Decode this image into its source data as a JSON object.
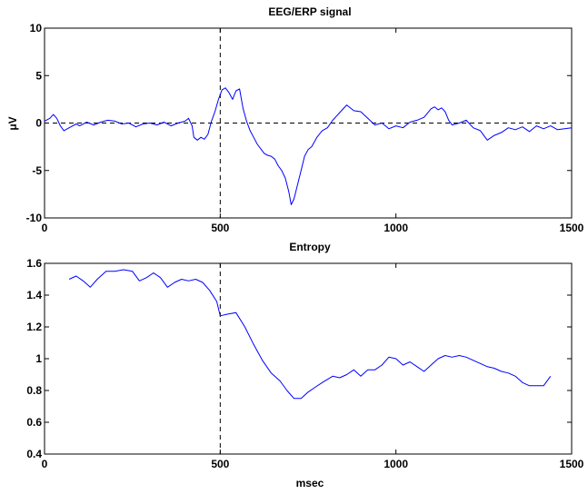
{
  "chart_data": [
    {
      "type": "line",
      "title": "EEG/ERP signal",
      "xlabel": "",
      "ylabel": "μV",
      "xlim": [
        0,
        1500
      ],
      "ylim": [
        -10,
        10
      ],
      "xticks": [
        0,
        500,
        1000,
        1500
      ],
      "yticks": [
        -10,
        -5,
        0,
        5,
        10
      ],
      "grid": false,
      "series": [
        {
          "color": "#0000ff",
          "x": [
            0,
            15,
            25,
            35,
            45,
            55,
            65,
            75,
            90,
            100,
            120,
            140,
            160,
            180,
            200,
            220,
            240,
            260,
            280,
            300,
            320,
            340,
            360,
            380,
            400,
            410,
            420,
            425,
            435,
            445,
            455,
            465,
            475,
            485,
            495,
            505,
            515,
            525,
            535,
            545,
            555,
            565,
            575,
            585,
            595,
            605,
            615,
            625,
            635,
            645,
            655,
            665,
            675,
            685,
            695,
            702,
            710,
            720,
            730,
            740,
            750,
            760,
            775,
            790,
            805,
            820,
            840,
            860,
            880,
            900,
            920,
            940,
            960,
            980,
            1000,
            1020,
            1040,
            1060,
            1080,
            1100,
            1110,
            1120,
            1130,
            1140,
            1150,
            1160,
            1180,
            1200,
            1220,
            1240,
            1260,
            1280,
            1300,
            1320,
            1340,
            1360,
            1380,
            1400,
            1420,
            1440,
            1460,
            1480,
            1500
          ],
          "values": [
            0.2,
            0.5,
            0.9,
            0.5,
            -0.3,
            -0.8,
            -0.6,
            -0.4,
            -0.1,
            -0.3,
            0.1,
            -0.2,
            0.1,
            0.3,
            0.2,
            -0.1,
            0.0,
            -0.4,
            -0.1,
            0.0,
            -0.2,
            0.1,
            -0.3,
            0.0,
            0.2,
            0.5,
            -0.3,
            -1.5,
            -1.8,
            -1.5,
            -1.7,
            -1.2,
            0.2,
            1.2,
            2.5,
            3.5,
            3.7,
            3.2,
            2.5,
            3.4,
            3.6,
            1.5,
            0.2,
            -0.8,
            -1.5,
            -2.2,
            -2.7,
            -3.2,
            -3.4,
            -3.5,
            -3.8,
            -4.5,
            -5.0,
            -5.8,
            -7.2,
            -8.6,
            -8.0,
            -6.5,
            -5.0,
            -3.5,
            -2.8,
            -2.5,
            -1.5,
            -0.8,
            -0.5,
            0.3,
            1.1,
            1.9,
            1.3,
            1.2,
            0.5,
            -0.2,
            0.0,
            -0.6,
            -0.3,
            -0.5,
            0.1,
            0.3,
            0.6,
            1.5,
            1.7,
            1.4,
            1.6,
            1.2,
            0.3,
            -0.2,
            0.0,
            0.3,
            -0.5,
            -0.8,
            -1.8,
            -1.3,
            -1.0,
            -0.5,
            -0.7,
            -0.4,
            -0.9,
            -0.3,
            -0.6,
            -0.3,
            -0.7,
            -0.6,
            -0.5
          ]
        }
      ],
      "markers": {
        "vline_x": 500,
        "hline_y": 0
      }
    },
    {
      "type": "line",
      "title": "Entropy",
      "xlabel": "msec",
      "ylabel": "",
      "xlim": [
        0,
        1500
      ],
      "ylim": [
        0.4,
        1.6
      ],
      "xticks": [
        0,
        500,
        1000,
        1500
      ],
      "yticks": [
        0.4,
        0.6,
        0.8,
        1,
        1.2,
        1.4,
        1.6
      ],
      "grid": false,
      "series": [
        {
          "color": "#0000ff",
          "x": [
            70,
            90,
            110,
            130,
            150,
            175,
            200,
            225,
            250,
            270,
            290,
            310,
            330,
            350,
            370,
            390,
            410,
            430,
            450,
            470,
            490,
            500,
            520,
            545,
            570,
            595,
            620,
            645,
            670,
            690,
            710,
            730,
            750,
            770,
            790,
            820,
            840,
            860,
            880,
            900,
            920,
            940,
            960,
            980,
            1000,
            1020,
            1040,
            1060,
            1080,
            1100,
            1120,
            1140,
            1160,
            1180,
            1200,
            1220,
            1240,
            1260,
            1280,
            1300,
            1320,
            1340,
            1360,
            1380,
            1400,
            1420,
            1440
          ],
          "values": [
            1.5,
            1.52,
            1.49,
            1.45,
            1.5,
            1.55,
            1.55,
            1.56,
            1.55,
            1.49,
            1.51,
            1.54,
            1.51,
            1.45,
            1.48,
            1.5,
            1.49,
            1.5,
            1.48,
            1.43,
            1.36,
            1.27,
            1.28,
            1.29,
            1.2,
            1.09,
            0.99,
            0.91,
            0.86,
            0.8,
            0.75,
            0.75,
            0.79,
            0.82,
            0.85,
            0.89,
            0.88,
            0.9,
            0.93,
            0.89,
            0.93,
            0.93,
            0.96,
            1.01,
            1.0,
            0.96,
            0.98,
            0.95,
            0.92,
            0.96,
            1.0,
            1.02,
            1.01,
            1.02,
            1.01,
            0.99,
            0.97,
            0.95,
            0.94,
            0.92,
            0.91,
            0.89,
            0.85,
            0.83,
            0.83,
            0.83,
            0.89
          ]
        }
      ],
      "markers": {
        "vline_x": 500
      }
    }
  ]
}
